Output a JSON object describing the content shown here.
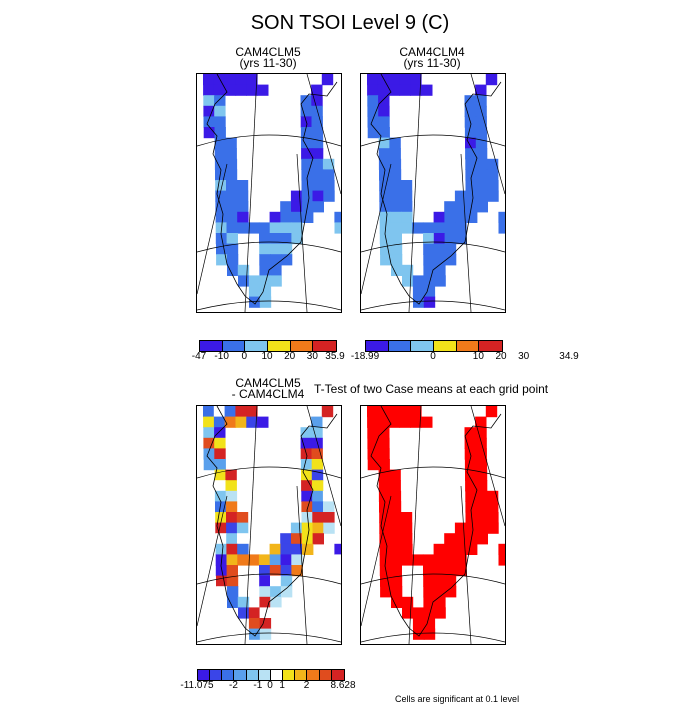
{
  "title": "SON TSOI Level 9 (C)",
  "panels": {
    "case1": {
      "title_line1": "CAM4CLM5",
      "title_line2": "(yrs 11-30)"
    },
    "case2": {
      "title_line1": "CAM4CLM4",
      "title_line2": "(yrs 11-30)"
    },
    "diff": {
      "title_line1": "CAM4CLM5",
      "title_line2": "- CAM4CLM4"
    },
    "ttest": {
      "title": "T-Test of two Case means at each grid point"
    }
  },
  "colorbars": {
    "case1": {
      "colors": [
        "#3b1ae6",
        "#3a70e8",
        "#7fc5ef",
        "#f2e21a",
        "#f07a1a",
        "#d42323"
      ],
      "labels": [
        "-47",
        "-10",
        "0",
        "10",
        "20",
        "30",
        "35.9"
      ]
    },
    "case2": {
      "colors": [
        "#3b1ae6",
        "#3a70e8",
        "#7fc5ef",
        "#f2e21a",
        "#f07a1a",
        "#d42323"
      ],
      "labels": [
        "-18.99",
        "0",
        "10",
        "20",
        "30",
        "34.9"
      ]
    },
    "diff": {
      "colors": [
        "#3b1ae6",
        "#3a45e8",
        "#3a70e8",
        "#5aa0ec",
        "#7fc5ef",
        "#b9e2f4",
        "#ffffff",
        "#f2e21a",
        "#f2b51a",
        "#f07a1a",
        "#e04c1e",
        "#d42323"
      ],
      "labels": [
        "-11.075",
        "-2",
        "-1",
        "0",
        "1",
        "2",
        "8.628"
      ]
    }
  },
  "footnote": "Cells are significant at 0.1 level",
  "chart_data": [
    {
      "type": "heatmap",
      "title": "CAM4CLM5 (yrs 11-30)",
      "field": "SON TSOI Level 9 (C)",
      "legend_levels": [
        -47,
        -10,
        0,
        10,
        20,
        30,
        35.9
      ],
      "legend_placement": "bottom",
      "dominant_values": "mostly -10 to 0 and 0 to 10 over Greenland; below -10 in the north"
    },
    {
      "type": "heatmap",
      "title": "CAM4CLM4 (yrs 11-30)",
      "field": "SON TSOI Level 9 (C)",
      "legend_levels": [
        -18.99,
        0,
        10,
        20,
        30,
        34.9
      ],
      "legend_placement": "bottom",
      "dominant_values": "mostly -10 to 0 with 0 to 10 cells along the southern coast; below -10 in the north"
    },
    {
      "type": "heatmap",
      "title": "CAM4CLM5 - CAM4CLM4",
      "field": "difference",
      "legend_levels": [
        -11.075,
        -2,
        -1,
        0,
        1,
        2,
        8.628
      ],
      "legend_placement": "bottom",
      "dominant_values": "mixed positive and negative differences"
    },
    {
      "type": "heatmap",
      "title": "T-Test of two Case means at each grid point",
      "field": "significance",
      "legend_placement": "none",
      "dominant_values": "nearly all cells significant (red)"
    }
  ]
}
